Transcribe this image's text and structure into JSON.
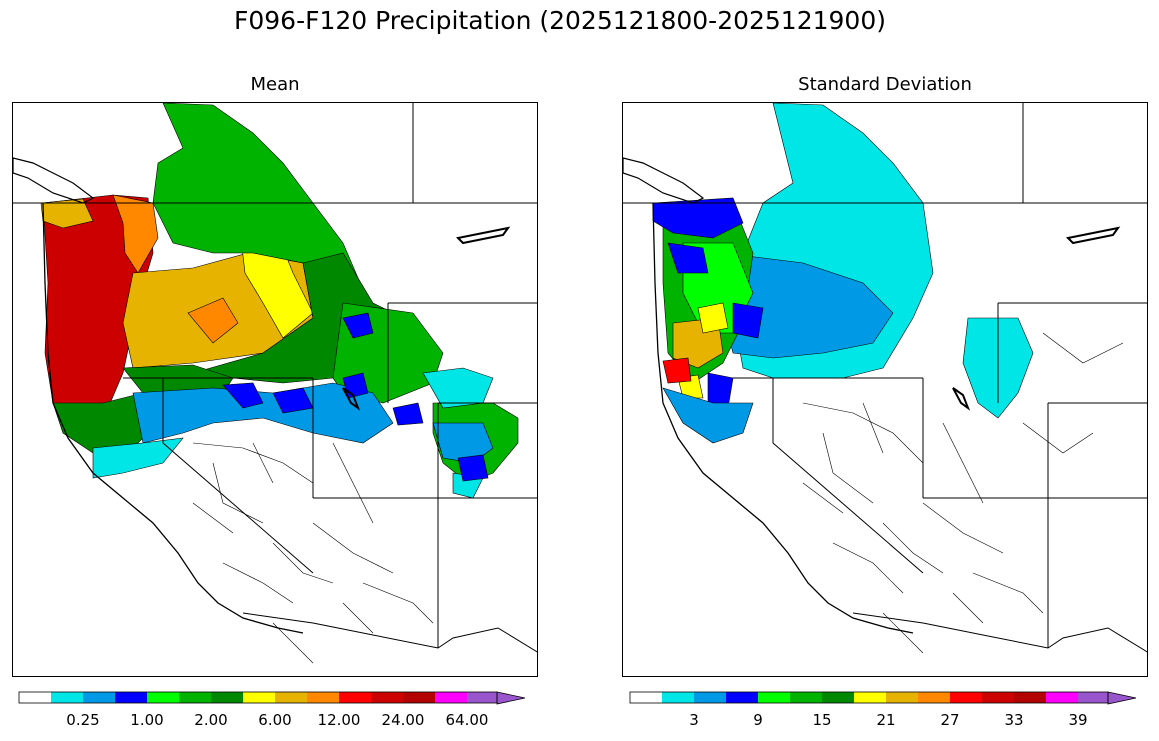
{
  "title": "F096-F120 Precipitation (2025121800-2025121900)",
  "panels": [
    {
      "title": "Mean",
      "colorbar": {
        "colors": [
          "#ffffff",
          "#00e6e6",
          "#0099e6",
          "#0000ff",
          "#00ff00",
          "#00b300",
          "#008800",
          "#ffff00",
          "#e6b400",
          "#ff8800",
          "#ff0000",
          "#cc0000",
          "#b30000",
          "#ff00ff",
          "#9955cc"
        ],
        "tick_labels": [
          "0.25",
          "1.00",
          "2.00",
          "6.00",
          "12.00",
          "24.00",
          "64.00"
        ],
        "extend": "max"
      }
    },
    {
      "title": "Standard Deviation",
      "colorbar": {
        "colors": [
          "#ffffff",
          "#00e6e6",
          "#0099e6",
          "#0000ff",
          "#00ff00",
          "#00b300",
          "#008800",
          "#ffff00",
          "#e6b400",
          "#ff8800",
          "#ff0000",
          "#cc0000",
          "#b30000",
          "#ff00ff",
          "#9955cc"
        ],
        "tick_labels": [
          "3",
          "9",
          "15",
          "21",
          "27",
          "33",
          "39"
        ],
        "extend": "max"
      }
    }
  ]
}
